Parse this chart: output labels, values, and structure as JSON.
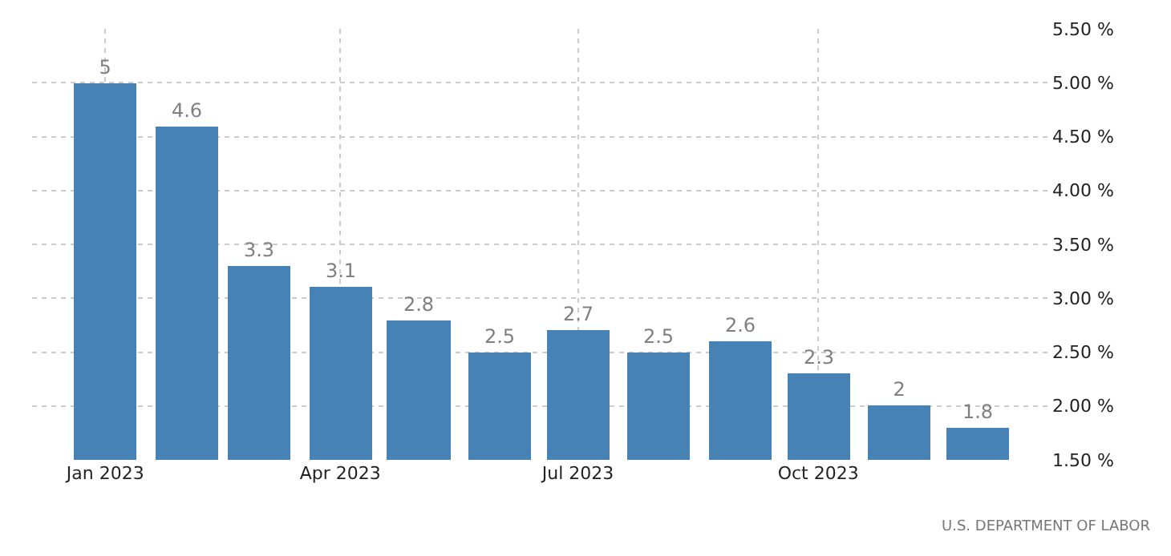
{
  "chart_data": {
    "type": "bar",
    "x": [
      "2023-01",
      "2023-02",
      "2023-03",
      "2023-04",
      "2023-05",
      "2023-06",
      "2023-07",
      "2023-08",
      "2023-09",
      "2023-10",
      "2023-11",
      "2023-12"
    ],
    "series": [
      {
        "color": "#4682b4",
        "values": [
          5,
          4.6,
          3.3,
          3.1,
          2.8,
          2.5,
          2.7,
          2.5,
          2.6,
          2.3,
          2,
          1.8
        ]
      }
    ],
    "data_labels": true,
    "xlim": [
      "2022-12-04",
      "2023-12-29"
    ],
    "xticks": [
      {
        "value": "2023-01",
        "label": "Jan 2023"
      },
      {
        "value": "2023-04",
        "label": "Apr 2023"
      },
      {
        "value": "2023-07",
        "label": "Jul 2023"
      },
      {
        "value": "2023-10",
        "label": "Oct 2023"
      }
    ],
    "ylim": [
      1.5,
      5.5
    ],
    "yticks": [
      {
        "value": 1.5,
        "label": "1.50 %"
      },
      {
        "value": 2,
        "label": "2.00 %"
      },
      {
        "value": 2.5,
        "label": "2.50 %"
      },
      {
        "value": 3,
        "label": "3.00 %"
      },
      {
        "value": 3.5,
        "label": "3.50 %"
      },
      {
        "value": 4,
        "label": "4.00 %"
      },
      {
        "value": 4.5,
        "label": "4.50 %"
      },
      {
        "value": 5,
        "label": "5.00 %"
      },
      {
        "value": 5.5,
        "label": "5.50 %"
      }
    ],
    "grid": true,
    "annotations": [
      "U.S. DEPARTMENT OF LABOR"
    ]
  }
}
